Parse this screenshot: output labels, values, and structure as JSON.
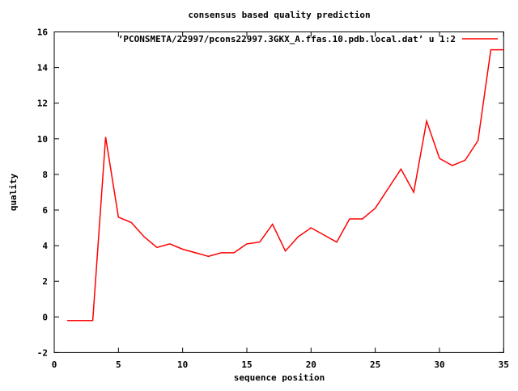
{
  "window": {
    "background": "#ffffff",
    "text_color": "#000000",
    "axis_color": "#000000"
  },
  "chart_data": {
    "type": "line",
    "title": "consensus based quality prediction",
    "xlabel": "sequence position",
    "ylabel": "quality",
    "xlim": [
      0,
      35
    ],
    "ylim": [
      -2,
      16
    ],
    "xticks": [
      0,
      5,
      10,
      15,
      20,
      25,
      30,
      35
    ],
    "yticks": [
      -2,
      0,
      2,
      4,
      6,
      8,
      10,
      12,
      14,
      16
    ],
    "grid": false,
    "legend_position": "top-right-inside",
    "series": [
      {
        "label": "’PCONSMETA/22997/pcons22997.3GKX_A.ffas.10.pdb.local.dat’ u 1:2",
        "color": "#ff0000",
        "x": [
          1,
          2,
          3,
          4,
          5,
          6,
          7,
          8,
          9,
          10,
          11,
          12,
          13,
          14,
          15,
          16,
          17,
          18,
          19,
          20,
          21,
          22,
          23,
          24,
          25,
          26,
          27,
          28,
          29,
          30,
          31,
          32,
          33,
          34,
          35
        ],
        "y": [
          -0.2,
          -0.2,
          -0.2,
          10.1,
          5.6,
          5.3,
          4.5,
          3.9,
          4.1,
          3.8,
          3.6,
          3.4,
          3.6,
          3.6,
          4.1,
          4.2,
          5.2,
          3.7,
          4.5,
          5.0,
          4.6,
          4.2,
          5.5,
          5.5,
          6.1,
          7.2,
          8.3,
          7.0,
          11.0,
          8.9,
          8.5,
          8.8,
          9.9,
          15.0,
          15.0
        ]
      }
    ]
  }
}
